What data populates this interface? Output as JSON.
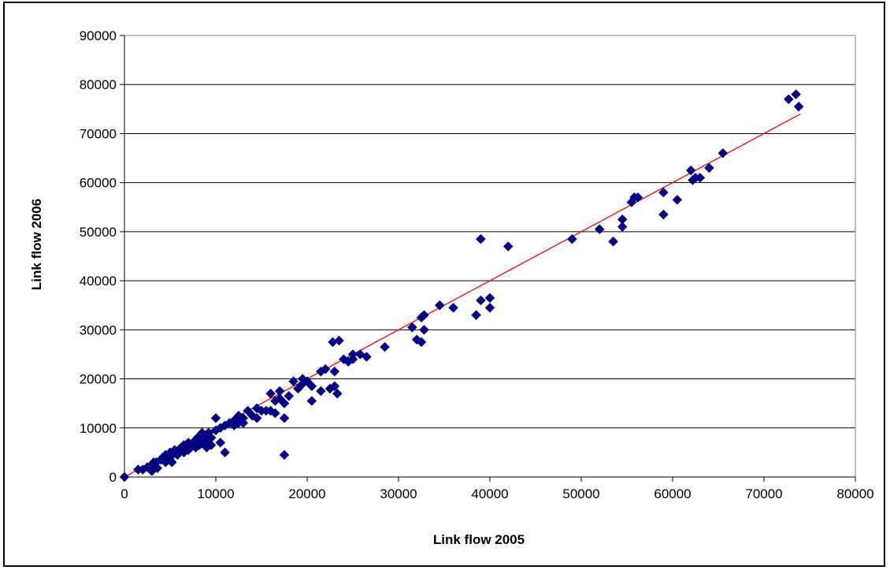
{
  "chart_data": {
    "type": "scatter",
    "title": "",
    "xlabel": "Link flow 2005",
    "ylabel": "Link flow 2006",
    "xlim": [
      0,
      80000
    ],
    "ylim": [
      0,
      90000
    ],
    "grid": "horizontal",
    "legend": "none",
    "x_ticks": [
      "0",
      "10000",
      "20000",
      "30000",
      "40000",
      "50000",
      "60000",
      "70000",
      "80000"
    ],
    "y_ticks": [
      "0",
      "10000",
      "20000",
      "30000",
      "40000",
      "50000",
      "60000",
      "70000",
      "80000",
      "90000"
    ],
    "colors": {
      "marker": "#000080",
      "trendline": "#ff0000",
      "grid": "#000000"
    },
    "series": [
      {
        "marker": "diamond",
        "points": [
          [
            0,
            0
          ],
          [
            1500,
            1500
          ],
          [
            2000,
            1500
          ],
          [
            2500,
            2000
          ],
          [
            3000,
            2500
          ],
          [
            3000,
            1200
          ],
          [
            3200,
            3000
          ],
          [
            3500,
            3000
          ],
          [
            3600,
            1800
          ],
          [
            4000,
            3500
          ],
          [
            4200,
            4000
          ],
          [
            4500,
            3000
          ],
          [
            4500,
            4500
          ],
          [
            5000,
            5000
          ],
          [
            5000,
            4000
          ],
          [
            5200,
            3000
          ],
          [
            5500,
            5500
          ],
          [
            5800,
            4500
          ],
          [
            6000,
            5500
          ],
          [
            6200,
            6000
          ],
          [
            6500,
            5000
          ],
          [
            6500,
            6500
          ],
          [
            7000,
            7000
          ],
          [
            7000,
            5500
          ],
          [
            7200,
            6500
          ],
          [
            7500,
            7000
          ],
          [
            7800,
            6000
          ],
          [
            8000,
            8000
          ],
          [
            8000,
            7500
          ],
          [
            8200,
            6500
          ],
          [
            8500,
            9000
          ],
          [
            8500,
            7000
          ],
          [
            8800,
            8500
          ],
          [
            9000,
            6000
          ],
          [
            9000,
            7500
          ],
          [
            9200,
            9000
          ],
          [
            9500,
            6500
          ],
          [
            9500,
            8000
          ],
          [
            10000,
            12000
          ],
          [
            10000,
            9500
          ],
          [
            10500,
            10000
          ],
          [
            10500,
            7000
          ],
          [
            11000,
            10500
          ],
          [
            11000,
            5000
          ],
          [
            11500,
            11000
          ],
          [
            12000,
            11500
          ],
          [
            12000,
            10500
          ],
          [
            12500,
            12500
          ],
          [
            12500,
            11000
          ],
          [
            13000,
            12000
          ],
          [
            13000,
            11000
          ],
          [
            13500,
            13500
          ],
          [
            14000,
            12500
          ],
          [
            14500,
            14000
          ],
          [
            14500,
            12000
          ],
          [
            15000,
            13500
          ],
          [
            15500,
            13500
          ],
          [
            16000,
            17000
          ],
          [
            16000,
            13500
          ],
          [
            16500,
            15500
          ],
          [
            16500,
            13000
          ],
          [
            17000,
            17500
          ],
          [
            17000,
            16000
          ],
          [
            17500,
            15000
          ],
          [
            17500,
            12000
          ],
          [
            17500,
            4500
          ],
          [
            18000,
            16500
          ],
          [
            18500,
            19500
          ],
          [
            19000,
            18000
          ],
          [
            19500,
            20000
          ],
          [
            19500,
            19000
          ],
          [
            20000,
            19500
          ],
          [
            20500,
            18500
          ],
          [
            20500,
            15500
          ],
          [
            21500,
            21500
          ],
          [
            21500,
            17500
          ],
          [
            22000,
            22000
          ],
          [
            22500,
            18000
          ],
          [
            22800,
            27500
          ],
          [
            23000,
            21500
          ],
          [
            23000,
            18500
          ],
          [
            23300,
            17000
          ],
          [
            23500,
            27800
          ],
          [
            24000,
            24000
          ],
          [
            24500,
            23500
          ],
          [
            25000,
            25000
          ],
          [
            25000,
            24000
          ],
          [
            25800,
            25000
          ],
          [
            26500,
            24500
          ],
          [
            28500,
            26500
          ],
          [
            31500,
            30500
          ],
          [
            32000,
            28000
          ],
          [
            32500,
            27500
          ],
          [
            32500,
            32500
          ],
          [
            32800,
            33000
          ],
          [
            32800,
            30000
          ],
          [
            34500,
            35000
          ],
          [
            36000,
            34500
          ],
          [
            38500,
            33000
          ],
          [
            39000,
            36000
          ],
          [
            39000,
            48500
          ],
          [
            40000,
            34500
          ],
          [
            40000,
            36500
          ],
          [
            42000,
            47000
          ],
          [
            49000,
            48500
          ],
          [
            52000,
            50500
          ],
          [
            53500,
            48000
          ],
          [
            54500,
            52500
          ],
          [
            54500,
            51000
          ],
          [
            55500,
            56000
          ],
          [
            55800,
            57000
          ],
          [
            56200,
            57000
          ],
          [
            59000,
            58000
          ],
          [
            59000,
            53500
          ],
          [
            60500,
            56500
          ],
          [
            62000,
            62500
          ],
          [
            62200,
            60500
          ],
          [
            62500,
            61000
          ],
          [
            63000,
            61000
          ],
          [
            64000,
            63000
          ],
          [
            65500,
            66000
          ],
          [
            72700,
            77000
          ],
          [
            73500,
            78000
          ],
          [
            73800,
            75500
          ]
        ]
      }
    ],
    "trendline": {
      "x": [
        0,
        74000
      ],
      "y": [
        0,
        74000
      ]
    }
  }
}
